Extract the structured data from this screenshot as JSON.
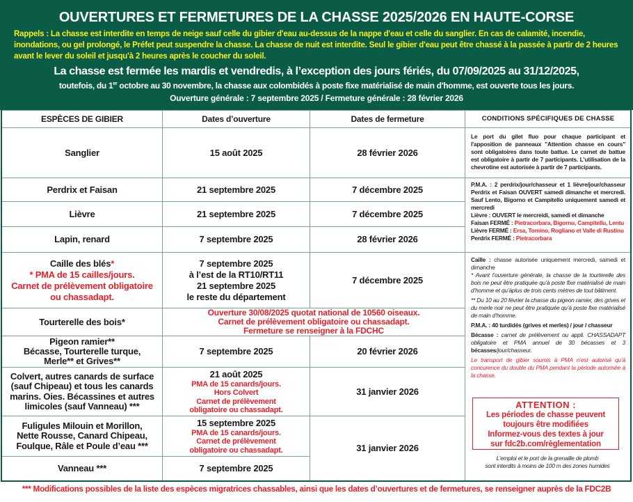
{
  "header": {
    "title": "OUVERTURES ET FERMETURES DE LA CHASSE 2025/2026 EN HAUTE-CORSE",
    "rappels": "Rappels : La chasse est interdite en temps de neige sauf celle du gibier d'eau au-dessus de la nappe d'eau et celle du sanglier. En cas de calamité, incendie, inondations, ou gel prolongé, le Préfet peut suspendre la chasse. La chasse de nuit est interdite. Seul le gibier d'eau peut être chassé à la passée à partir de 2 heures avant le lever du soleil et jusqu'à 2 heures après le coucher du soleil.",
    "closed_line": "La chasse est fermée les mardis et vendredis, à l’exception des jours fériés, du 07/09/2025 au 31/12/2025,",
    "closed_line2_a": "toutefois, du 1",
    "closed_line2_sup": "er",
    "closed_line2_b": " octobre au 30 novembre, la chasse aux colombidés à poste fixe matérialisé de main d'homme, est ouverte tous les jours.",
    "general": "Ouverture générale : 7 septembre 2025 / Fermeture générale : 28 février 2026"
  },
  "table": {
    "headers": [
      "ESPÈCES DE GIBIER",
      "Dates d’ouverture",
      "Dates de fermeture",
      "CONDITIONS SPÉCIFIQUES DE CHASSE"
    ],
    "rows": [
      {
        "species": "Sanglier",
        "open": "15 août 2025",
        "close": "28 février 2026"
      },
      {
        "species": "Perdrix et Faisan",
        "open": "21 septembre 2025",
        "close": "7 décembre 2025"
      },
      {
        "species": "Lièvre",
        "open": "21 septembre 2025",
        "close": "7 décembre 2025"
      },
      {
        "species": "Lapin, renard",
        "open": "7 septembre 2025",
        "close": "28 février 2026"
      },
      {
        "species": "Caille des blés",
        "species_star": "*",
        "species_notes": [
          "* PMA de 15 cailles/jours.",
          "Carnet de prélèvement obligatoire",
          "ou chassadapt."
        ],
        "open_lines": [
          "7 septembre 2025",
          "à l’est de la RT10/RT11",
          "21 septembre 2025",
          "le reste du département"
        ],
        "close": "7 décembre 2025"
      },
      {
        "species": "Tourterelle des bois*",
        "merged_note": [
          "Ouverture 30/08/2025 quotat national de 10560 oiseaux.",
          "Carnet de prélèvement obligatoire ou chassadapt.",
          "Fermeture se renseigner à la FDCHC"
        ]
      },
      {
        "species_lines": [
          "Pigeon ramier**",
          "Bécasse, Tourterelle turque,",
          "Merle** et Grives**"
        ],
        "open": "7 septembre 2025",
        "close": "20 février 2026"
      },
      {
        "species_lines": [
          "Colvert, autres canards de surface",
          "(sauf Chipeau) et tous les canards",
          "marins. Oies. Bécassines et autres",
          "limicoles (sauf Vanneau) ***"
        ],
        "open": "21 août 2025",
        "open_notes": [
          "PMA de 15 canards/jours.",
          "Hors Colvert",
          "Carnet de prélèvement",
          "obligatoire ou chassadapt."
        ],
        "close": "31 janvier 2026"
      },
      {
        "species_lines": [
          "Fuligules Milouin et Morillon,",
          "Nette Rousse, Canard Chipeau,",
          "Foulque, Râle et Poule d’eau ***"
        ],
        "open": "15 septembre 2025",
        "open_notes": [
          "PMA de 15 canards/jours.",
          "Carnet de prélèvement",
          "obligatoire ou chassadapt."
        ],
        "close": "31 janvier 2026"
      },
      {
        "species": "Vanneau ***",
        "open": "7 septembre 2025"
      }
    ],
    "conditions": {
      "sanglier": "Le port du gilet fluo pour chaque participant et l'apposition de panneaux \"Attention chasse en cours\" sont obligatoires dans toute battue. Le carnet de battue est obligatoire à partir de 7 participants. L'utilisation de la chevrotine est autorisée à partir de 7 participants.",
      "petit_gibier": "P.M.A. : 2 perdrix/jour/chasseur et 1 lièvre/jour/chasseur Perdrix et Faisan OUVERT samedi dimanche et mercredi. Sauf Lento, Bigorno et Campitello uniquement samedi et mercredi",
      "lievre_open": "Lièvre : OUVERT le mercreidi, samedi et dimanche",
      "closures": [
        {
          "label": "Faisan FERMÉ : ",
          "places": "Pietracorbara, Bigornu, Campitellu, Lentu"
        },
        {
          "label": "Lièvre FERMÉ : ",
          "places": "Ersa, Tomino, Rogliano et Valle di Rustinu"
        },
        {
          "label": "Perdrix FERMÉ : ",
          "places": "Pietracorbara"
        }
      ],
      "caille_label": "Caille :",
      "caille": " chasse autorisée uniquement mercredi, samedi et dimanche",
      "tourterelle": "* Avant l’ouverture générale, la chasse de la tourterelle des bois ne peut être pratiquée qu’à poste fixe matérialisé de main d’homme et qu’àplus de trois cents mètres de tout bâtiment.",
      "pigeon": "** Du 10 au 20 février la chasse du pigeon ramier, des grives et du merle noir ne peut être pratiquée qu’à poste fixe matérialisé de main d’homme.",
      "turdides": "P.M.A. : 40 turdidés (grives et merles) / jour / chasseur",
      "becasse_label": "Bécasse :",
      "becasse": " carnet de prélèvement ou appli. CHASSADAPT obligatoire et PMA annuel de 30 bécasses et 3 ",
      "becasse_end": "bécasses",
      "becasse_tail": "/jour/chasseur.",
      "transport": "Le transport de gibier soumis à PMA n’est autorisé qu’à concurence du double du PMA pendant la période autorisée à la chasse.",
      "attention": {
        "title": "ATTENTION :",
        "lines": [
          "Les périodes de chasse peuvent",
          "toujours être modifiées",
          "Informez-vous des textes à jour",
          "sur fdc2b.com/règlementation"
        ]
      },
      "plomb": [
        "L’emploi et le port de la grenaille de plomb",
        "sont interdits à moins de 100 m des zones humides"
      ]
    }
  },
  "footer": "*** Modifications possibles de la liste des espèces migratrices chassables, ainsi que les dates d’ouvertures et de fermetures, se renseigner auprès de la FDC2B",
  "colors": {
    "brand_green": "#0b5c47",
    "rappels_yellow": "#f5ef1a",
    "alert_red": "#e8202a",
    "border": "#7aa794"
  }
}
